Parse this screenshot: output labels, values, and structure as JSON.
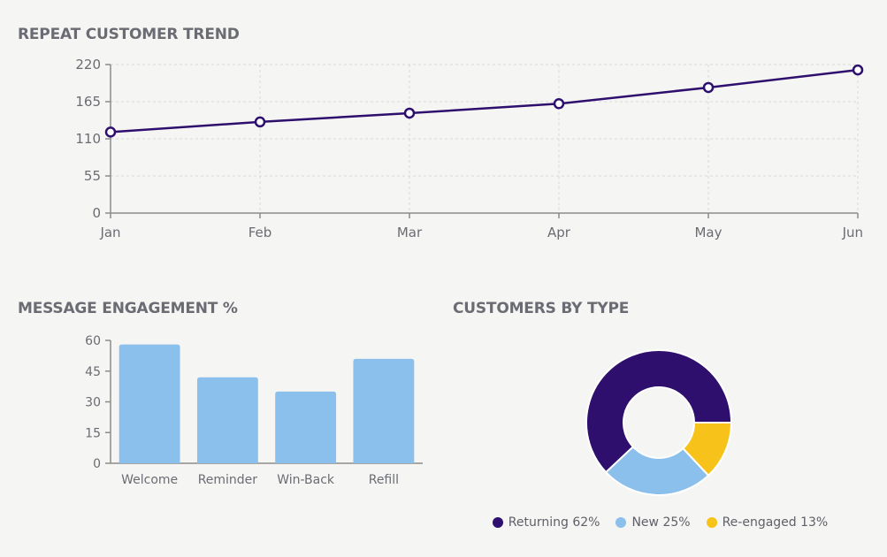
{
  "colors": {
    "line": "#2e0f6e",
    "bar": "#8bbfec",
    "returning": "#2e0f6e",
    "new": "#8bbfec",
    "reengaged": "#f7c21a",
    "axis": "#8b8b8b",
    "grid": "#d9d9d9"
  },
  "chart_data": [
    {
      "type": "line",
      "title": "REPEAT CUSTOMER TREND",
      "categories": [
        "Jan",
        "Feb",
        "Mar",
        "Apr",
        "May",
        "Jun"
      ],
      "values": [
        120,
        135,
        148,
        162,
        186,
        212
      ],
      "yticks": [
        0,
        55,
        110,
        165,
        220
      ],
      "ylim": [
        0,
        220
      ],
      "grid": true
    },
    {
      "type": "bar",
      "title": "MESSAGE ENGAGEMENT %",
      "categories": [
        "Welcome",
        "Reminder",
        "Win-Back",
        "Refill"
      ],
      "values": [
        58,
        42,
        35,
        51
      ],
      "yticks": [
        0,
        15,
        30,
        45,
        60
      ],
      "ylim": [
        0,
        60
      ]
    },
    {
      "type": "pie",
      "title": "CUSTOMERS BY TYPE",
      "slices": [
        {
          "label": "Returning 62%",
          "value": 62,
          "color_key": "returning"
        },
        {
          "label": "New 25%",
          "value": 25,
          "color_key": "new"
        },
        {
          "label": "Re-engaged 13%",
          "value": 13,
          "color_key": "reengaged"
        }
      ],
      "legend_position": "bottom"
    }
  ]
}
